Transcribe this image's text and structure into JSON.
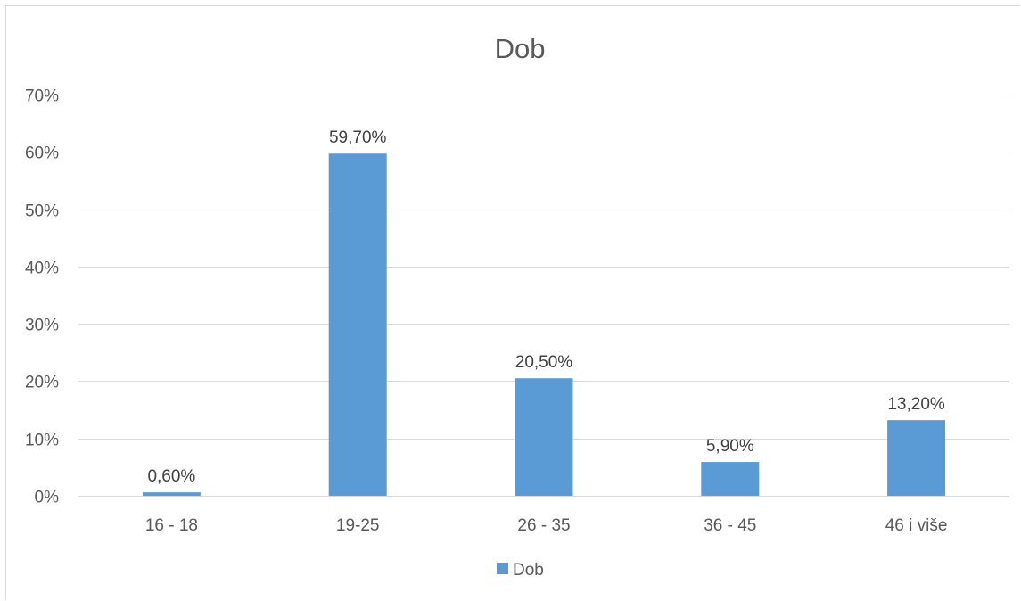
{
  "chart_data": {
    "type": "bar",
    "title": "Dob",
    "xlabel": "",
    "ylabel": "",
    "categories": [
      "16 - 18",
      "19-25",
      "26 - 35",
      "36 - 45",
      "46 i više"
    ],
    "series": [
      {
        "name": "Dob",
        "values": [
          0.6,
          59.7,
          20.5,
          5.9,
          13.2
        ],
        "labels": [
          "0,60%",
          "59,70%",
          "20,50%",
          "5,90%",
          "13,20%"
        ],
        "color": "#5b9bd5"
      }
    ],
    "ylim": [
      0,
      70
    ],
    "yticks": [
      0,
      10,
      20,
      30,
      40,
      50,
      60,
      70
    ],
    "ytick_labels": [
      "0%",
      "10%",
      "20%",
      "30%",
      "40%",
      "50%",
      "60%",
      "70%"
    ],
    "grid": true,
    "gridline_color": "#d9d9d9",
    "legend": "bottom"
  }
}
